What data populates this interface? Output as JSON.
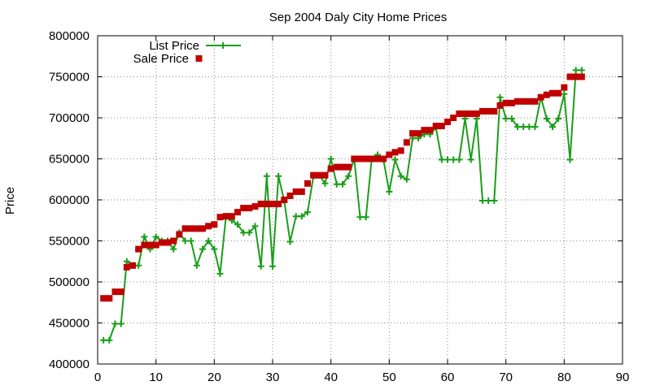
{
  "chart_data": {
    "type": "line",
    "title": "Sep 2004 Daly City Home Prices",
    "xlabel": "",
    "ylabel": "Price",
    "xlim": [
      0,
      90
    ],
    "ylim": [
      400000,
      800000
    ],
    "x_ticks": [
      0,
      10,
      20,
      30,
      40,
      50,
      60,
      70,
      80,
      90
    ],
    "y_ticks": [
      400000,
      450000,
      500000,
      550000,
      600000,
      650000,
      700000,
      750000,
      800000
    ],
    "grid": true,
    "legend_position": "top-left",
    "series": [
      {
        "name": "List Price",
        "style": "line with plus markers",
        "color": "#1a9e1a",
        "points": [
          [
            1,
            429000
          ],
          [
            2,
            429000
          ],
          [
            3,
            449000
          ],
          [
            4,
            449000
          ],
          [
            5,
            525000
          ],
          [
            6,
            520000
          ],
          [
            7,
            520000
          ],
          [
            8,
            555000
          ],
          [
            9,
            540000
          ],
          [
            10,
            555000
          ],
          [
            11,
            550000
          ],
          [
            12,
            550000
          ],
          [
            13,
            540000
          ],
          [
            14,
            560000
          ],
          [
            15,
            550000
          ],
          [
            16,
            550000
          ],
          [
            17,
            520000
          ],
          [
            18,
            540000
          ],
          [
            19,
            550000
          ],
          [
            20,
            540000
          ],
          [
            21,
            510000
          ],
          [
            22,
            580000
          ],
          [
            23,
            575000
          ],
          [
            24,
            570000
          ],
          [
            25,
            560000
          ],
          [
            26,
            560000
          ],
          [
            27,
            568000
          ],
          [
            28,
            519000
          ],
          [
            29,
            629000
          ],
          [
            30,
            519000
          ],
          [
            31,
            629000
          ],
          [
            32,
            599000
          ],
          [
            33,
            549000
          ],
          [
            34,
            580000
          ],
          [
            35,
            580000
          ],
          [
            36,
            585000
          ],
          [
            37,
            629000
          ],
          [
            38,
            630000
          ],
          [
            39,
            620000
          ],
          [
            40,
            650000
          ],
          [
            41,
            619000
          ],
          [
            42,
            619000
          ],
          [
            43,
            629000
          ],
          [
            44,
            650000
          ],
          [
            45,
            579000
          ],
          [
            46,
            579000
          ],
          [
            47,
            650000
          ],
          [
            48,
            655000
          ],
          [
            49,
            649000
          ],
          [
            50,
            610000
          ],
          [
            51,
            649000
          ],
          [
            52,
            629000
          ],
          [
            53,
            625000
          ],
          [
            54,
            675000
          ],
          [
            55,
            675000
          ],
          [
            56,
            680000
          ],
          [
            57,
            680000
          ],
          [
            58,
            688000
          ],
          [
            59,
            649000
          ],
          [
            60,
            649000
          ],
          [
            61,
            649000
          ],
          [
            62,
            649000
          ],
          [
            63,
            699000
          ],
          [
            64,
            649000
          ],
          [
            65,
            699000
          ],
          [
            66,
            599000
          ],
          [
            67,
            599000
          ],
          [
            68,
            599000
          ],
          [
            69,
            725000
          ],
          [
            70,
            699000
          ],
          [
            71,
            699000
          ],
          [
            72,
            689000
          ],
          [
            73,
            689000
          ],
          [
            74,
            689000
          ],
          [
            75,
            689000
          ],
          [
            76,
            725000
          ],
          [
            77,
            699000
          ],
          [
            78,
            689000
          ],
          [
            79,
            699000
          ],
          [
            80,
            729000
          ],
          [
            81,
            649000
          ],
          [
            82,
            758000
          ],
          [
            83,
            758000
          ]
        ]
      },
      {
        "name": "Sale Price",
        "style": "square markers",
        "color": "#c00000",
        "points": [
          [
            1,
            480000
          ],
          [
            2,
            480000
          ],
          [
            3,
            488000
          ],
          [
            4,
            488000
          ],
          [
            5,
            518000
          ],
          [
            6,
            520000
          ],
          [
            7,
            540000
          ],
          [
            8,
            545000
          ],
          [
            9,
            545000
          ],
          [
            10,
            545000
          ],
          [
            11,
            548000
          ],
          [
            12,
            548000
          ],
          [
            13,
            550000
          ],
          [
            14,
            558000
          ],
          [
            15,
            565000
          ],
          [
            16,
            565000
          ],
          [
            17,
            565000
          ],
          [
            18,
            565000
          ],
          [
            19,
            568000
          ],
          [
            20,
            570000
          ],
          [
            21,
            579000
          ],
          [
            22,
            580000
          ],
          [
            23,
            580000
          ],
          [
            24,
            585000
          ],
          [
            25,
            590000
          ],
          [
            26,
            590000
          ],
          [
            27,
            592000
          ],
          [
            28,
            595000
          ],
          [
            29,
            595000
          ],
          [
            30,
            595000
          ],
          [
            31,
            595000
          ],
          [
            32,
            600000
          ],
          [
            33,
            605000
          ],
          [
            34,
            610000
          ],
          [
            35,
            610000
          ],
          [
            36,
            620000
          ],
          [
            37,
            630000
          ],
          [
            38,
            630000
          ],
          [
            39,
            630000
          ],
          [
            40,
            638000
          ],
          [
            41,
            640000
          ],
          [
            42,
            640000
          ],
          [
            43,
            640000
          ],
          [
            44,
            650000
          ],
          [
            45,
            650000
          ],
          [
            46,
            650000
          ],
          [
            47,
            650000
          ],
          [
            48,
            650000
          ],
          [
            49,
            650000
          ],
          [
            50,
            655000
          ],
          [
            51,
            658000
          ],
          [
            52,
            660000
          ],
          [
            53,
            670000
          ],
          [
            54,
            681000
          ],
          [
            55,
            681000
          ],
          [
            56,
            685000
          ],
          [
            57,
            685000
          ],
          [
            58,
            690000
          ],
          [
            59,
            690000
          ],
          [
            60,
            695000
          ],
          [
            61,
            700000
          ],
          [
            62,
            705000
          ],
          [
            63,
            705000
          ],
          [
            64,
            705000
          ],
          [
            65,
            705000
          ],
          [
            66,
            708000
          ],
          [
            67,
            708000
          ],
          [
            68,
            708000
          ],
          [
            69,
            715000
          ],
          [
            70,
            718000
          ],
          [
            71,
            718000
          ],
          [
            72,
            720000
          ],
          [
            73,
            720000
          ],
          [
            74,
            720000
          ],
          [
            75,
            720000
          ],
          [
            76,
            725000
          ],
          [
            77,
            728000
          ],
          [
            78,
            730000
          ],
          [
            79,
            730000
          ],
          [
            80,
            737000
          ],
          [
            81,
            750000
          ],
          [
            82,
            750000
          ],
          [
            83,
            750000
          ]
        ]
      }
    ]
  }
}
